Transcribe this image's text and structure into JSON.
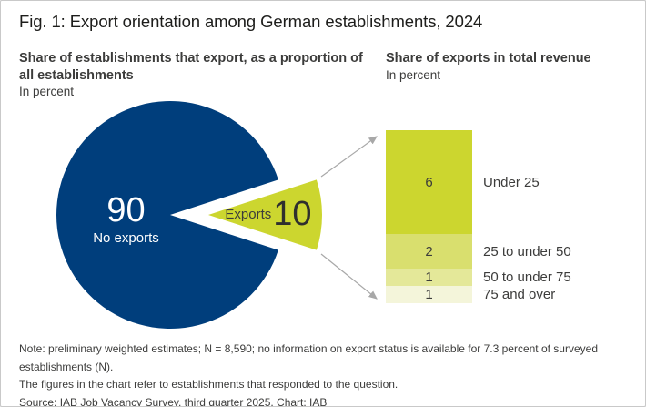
{
  "figure": {
    "title": "Fig. 1: Export orientation among German establishments, 2024",
    "left_panel": {
      "subtitle": "Share of establishments that export, as a proportion of all establishments",
      "unit": "In percent"
    },
    "right_panel": {
      "subtitle": "Share of exports in total revenue",
      "unit": "In percent"
    },
    "notes": [
      "Note: preliminary weighted estimates; N = 8,590; no information on export status is available for 7.3 percent of surveyed establishments (N).",
      "The figures in the chart refer to establishments that responded to the question.",
      "Source: IAB Job Vacancy Survey, third quarter 2025. Chart: IAB"
    ]
  },
  "chart_data": [
    {
      "type": "pie",
      "title": "Share of establishments that export, as a proportion of all establishments",
      "unit": "In percent",
      "slices": [
        {
          "label": "No exports",
          "value": 90,
          "color": "#003e7c",
          "text_color": "#ffffff"
        },
        {
          "label": "Exports",
          "value": 10,
          "color": "#ccd62f",
          "text_color": "#3c3c3b",
          "exploded": true
        }
      ]
    },
    {
      "type": "bar",
      "stacked": true,
      "title": "Share of exports in total revenue",
      "unit": "In percent",
      "total": 10,
      "segments": [
        {
          "label": "Under 25",
          "value": 6,
          "color": "#ccd62f"
        },
        {
          "label": "25 to under 50",
          "value": 2,
          "color": "#d9df6e"
        },
        {
          "label": "50 to under 75",
          "value": 1,
          "color": "#e4e899"
        },
        {
          "label": "75 and over",
          "value": 1,
          "color": "#f4f5da"
        }
      ],
      "legend_position": "right",
      "grid": false
    }
  ],
  "colors": {
    "pie_main": "#003e7c",
    "accent_green": "#ccd62f",
    "connector_gray": "#a8a8a8",
    "text_dark": "#3c3c3b",
    "border": "#c9c9c9"
  }
}
